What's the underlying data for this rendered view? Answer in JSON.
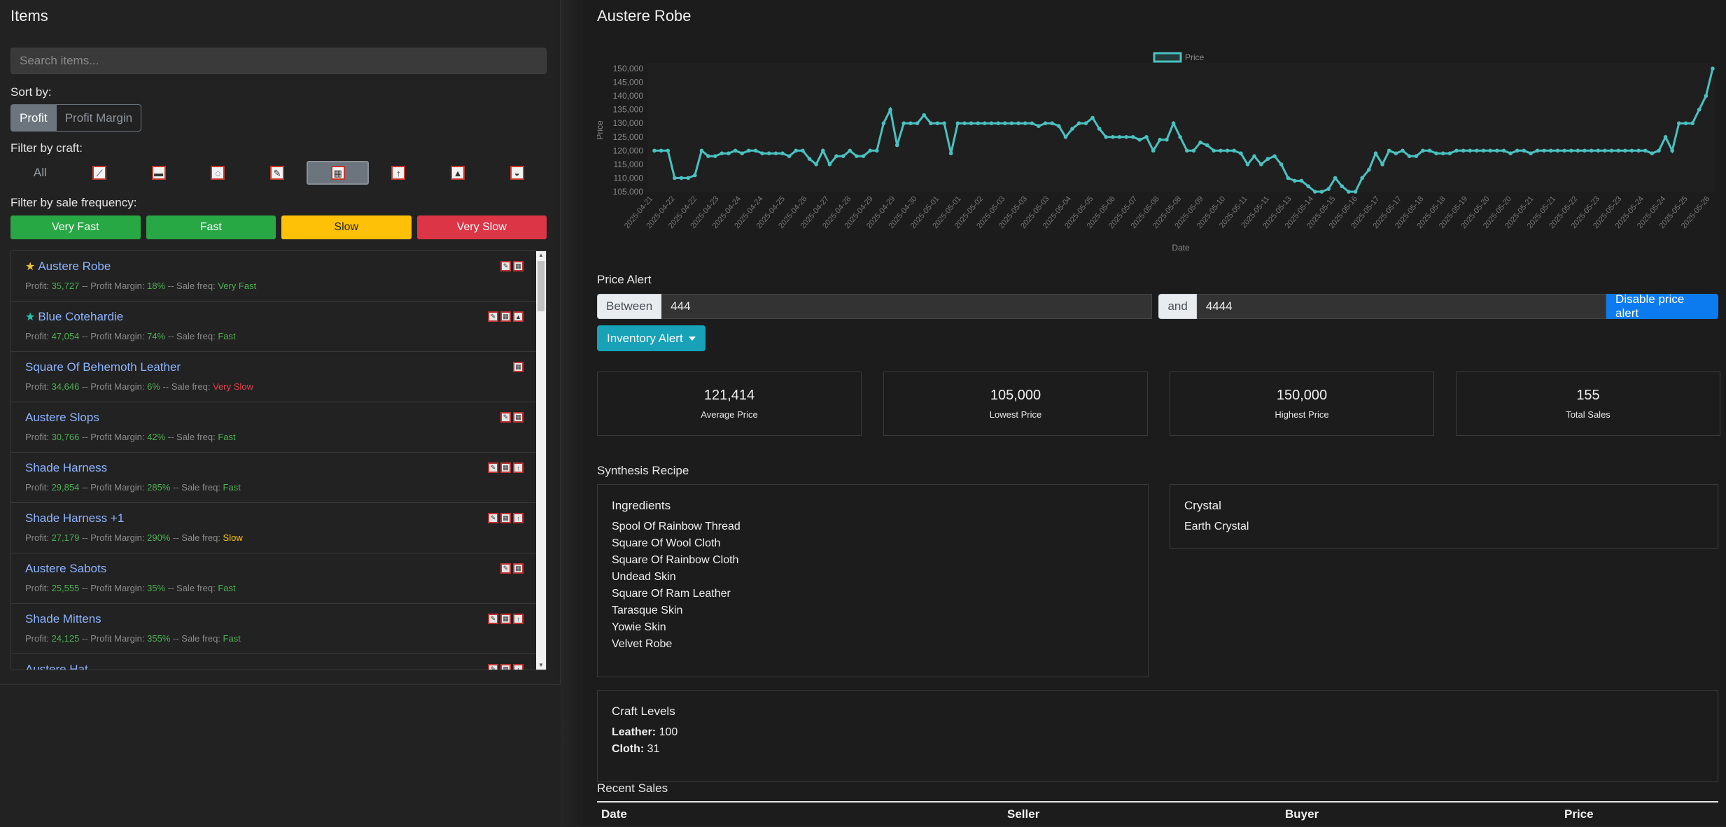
{
  "left": {
    "heading": "Items",
    "search_placeholder": "Search items...",
    "sort_label": "Sort by:",
    "sort_options": [
      "Profit",
      "Profit Margin"
    ],
    "craft_label": "Filter by craft:",
    "craft_all": "All",
    "freq_label": "Filter by sale frequency:",
    "freq": [
      {
        "label": "Very Fast",
        "color": "#28a745"
      },
      {
        "label": "Fast",
        "color": "#28a745"
      },
      {
        "label": "Slow",
        "color": "#ffc107"
      },
      {
        "label": "Very Slow",
        "color": "#dc3545"
      }
    ],
    "items": [
      {
        "star": "★",
        "star_color": "#f0c040",
        "name": "Austere Robe",
        "profit": "35,727",
        "margin": "18%",
        "freq": "Very Fast",
        "freq_class": "green"
      },
      {
        "star": "★",
        "star_color": "#20c9b0",
        "name": "Blue Cotehardie",
        "profit": "47,054",
        "margin": "74%",
        "freq": "Fast",
        "freq_class": "green"
      },
      {
        "star": "",
        "star_color": "",
        "name": "Square Of Behemoth Leather",
        "profit": "34,646",
        "margin": "6%",
        "freq": "Very Slow",
        "freq_class": "red"
      },
      {
        "star": "",
        "star_color": "",
        "name": "Austere Slops",
        "profit": "30,766",
        "margin": "42%",
        "freq": "Fast",
        "freq_class": "green"
      },
      {
        "star": "",
        "star_color": "",
        "name": "Shade Harness",
        "profit": "29,854",
        "margin": "285%",
        "freq": "Fast",
        "freq_class": "green"
      },
      {
        "star": "",
        "star_color": "",
        "name": "Shade Harness +1",
        "profit": "27,179",
        "margin": "290%",
        "freq": "Slow",
        "freq_class": "yellow"
      },
      {
        "star": "",
        "star_color": "",
        "name": "Austere Sabots",
        "profit": "25,555",
        "margin": "35%",
        "freq": "Fast",
        "freq_class": "green"
      },
      {
        "star": "",
        "star_color": "",
        "name": "Shade Mittens",
        "profit": "24,125",
        "margin": "355%",
        "freq": "Fast",
        "freq_class": "green"
      },
      {
        "star": "",
        "star_color": "",
        "name": "Austere Hat",
        "profit": "",
        "margin": "",
        "freq": "",
        "freq_class": "green"
      }
    ],
    "meta_labels": {
      "profit": "Profit: ",
      "margin": " -- Profit Margin: ",
      "freq": " -- Sale freq: "
    }
  },
  "right": {
    "title": "Austere Robe",
    "price_alert": {
      "label": "Price Alert",
      "between": "Between",
      "min": "444",
      "and": "and",
      "max": "4444",
      "disable": "Disable price alert"
    },
    "inventory_alert": "Inventory Alert",
    "stats": [
      {
        "value": "121,414",
        "label": "Average Price"
      },
      {
        "value": "105,000",
        "label": "Lowest Price"
      },
      {
        "value": "150,000",
        "label": "Highest Price"
      },
      {
        "value": "155",
        "label": "Total Sales"
      }
    ],
    "synthesis_label": "Synthesis Recipe",
    "ingredients_title": "Ingredients",
    "ingredients": [
      "Spool Of Rainbow Thread",
      "Square Of Wool Cloth",
      "Square Of Rainbow Cloth",
      "Undead Skin",
      "Square Of Ram Leather",
      "Tarasque Skin",
      "Yowie Skin",
      "Velvet Robe"
    ],
    "crystal_title": "Crystal",
    "crystal": "Earth Crystal",
    "craft_levels_title": "Craft Levels",
    "craft_levels": [
      {
        "name": "Leather:",
        "value": "100"
      },
      {
        "name": "Cloth:",
        "value": "31"
      }
    ],
    "recent_sales_label": "Recent Sales",
    "sales_columns": [
      "Date",
      "Seller",
      "Buyer",
      "Price"
    ]
  },
  "chart_data": {
    "type": "line",
    "legend": "Price",
    "xlabel": "Date",
    "ylabel": "Price",
    "ylim": [
      105000,
      150000
    ],
    "yticks": [
      "105,000",
      "110,000",
      "115,000",
      "120,000",
      "125,000",
      "130,000",
      "135,000",
      "140,000",
      "145,000",
      "150,000"
    ],
    "xticks": [
      "2025-04-21",
      "2025-04-22",
      "2025-04-22",
      "2025-04-23",
      "2025-04-24",
      "2025-04-24",
      "2025-04-25",
      "2025-04-26",
      "2025-04-27",
      "2025-04-28",
      "2025-04-29",
      "2025-04-29",
      "2025-04-30",
      "2025-05-01",
      "2025-05-01",
      "2025-05-02",
      "2025-05-03",
      "2025-05-03",
      "2025-05-03",
      "2025-05-04",
      "2025-05-05",
      "2025-05-06",
      "2025-05-07",
      "2025-05-08",
      "2025-05-08",
      "2025-05-09",
      "2025-05-10",
      "2025-05-11",
      "2025-05-11",
      "2025-05-13",
      "2025-05-14",
      "2025-05-15",
      "2025-05-16",
      "2025-05-17",
      "2025-05-17",
      "2025-05-18",
      "2025-05-18",
      "2025-05-19",
      "2025-05-20",
      "2025-05-20",
      "2025-05-21",
      "2025-05-21",
      "2025-05-22",
      "2025-05-23",
      "2025-05-23",
      "2025-05-24",
      "2025-05-24",
      "2025-05-25",
      "2025-05-26"
    ],
    "values": [
      120000,
      120000,
      120000,
      110000,
      110000,
      110000,
      111000,
      120000,
      118000,
      118000,
      119000,
      119000,
      120000,
      119000,
      120000,
      120000,
      119000,
      119000,
      119000,
      119000,
      118000,
      120000,
      120000,
      117000,
      115000,
      120000,
      115000,
      118000,
      118000,
      120000,
      118000,
      118000,
      120000,
      120000,
      130000,
      135000,
      122000,
      130000,
      130000,
      130000,
      133000,
      130000,
      130000,
      130000,
      119000,
      130000,
      130000,
      130000,
      130000,
      130000,
      130000,
      130000,
      130000,
      130000,
      130000,
      130000,
      130000,
      129000,
      130000,
      130000,
      129000,
      125000,
      128000,
      130000,
      130000,
      132000,
      128000,
      125000,
      125000,
      125000,
      125000,
      125000,
      124000,
      125000,
      120000,
      124000,
      124000,
      130000,
      125000,
      120000,
      120000,
      123000,
      122000,
      120000,
      120000,
      120000,
      120000,
      119000,
      115000,
      118000,
      115000,
      117000,
      118000,
      115000,
      110000,
      109000,
      109000,
      107000,
      105000,
      105000,
      106000,
      110000,
      107000,
      105000,
      105000,
      110000,
      113000,
      119000,
      115000,
      120000,
      119000,
      120000,
      118000,
      118000,
      120000,
      120000,
      119000,
      119000,
      119000,
      120000,
      120000,
      120000,
      120000,
      120000,
      120000,
      120000,
      120000,
      119000,
      120000,
      120000,
      119000,
      120000,
      120000,
      120000,
      120000,
      120000,
      120000,
      120000,
      120000,
      120000,
      120000,
      120000,
      120000,
      120000,
      120000,
      120000,
      120000,
      120000,
      119000,
      120000,
      125000,
      120000,
      130000,
      130000,
      130000,
      135000,
      140000,
      150000
    ]
  }
}
